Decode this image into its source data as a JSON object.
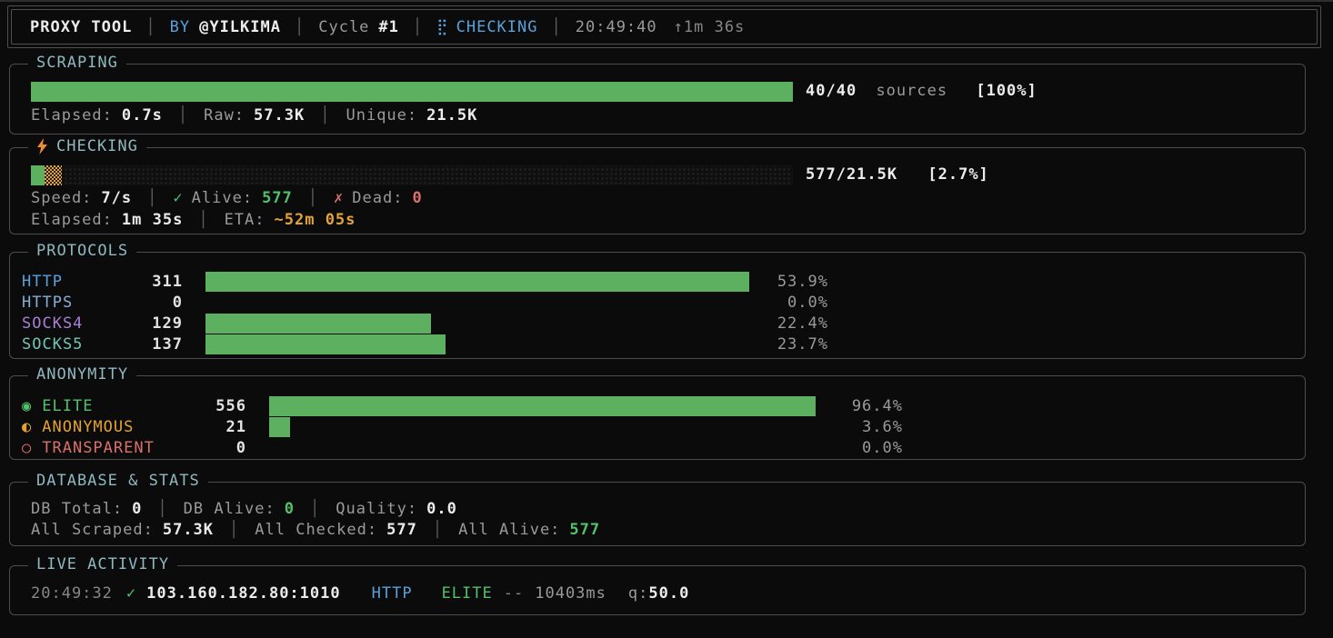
{
  "sep": "│",
  "colors": {
    "background": "#0b0b0c",
    "border": "#4d4d4d",
    "title_cyan": "#8fb8bf",
    "bar_green": "#5db05f",
    "text_green": "#53c06c",
    "blue": "#58a1dc",
    "light_blue": "#84aed4",
    "purple": "#a97fd6",
    "teal": "#72c4b4",
    "orange": "#e3a338",
    "red": "#d9706a",
    "gray": "#9a9a9a",
    "white": "#ececec"
  },
  "header": {
    "title": "PROXY TOOL",
    "by_label": "BY",
    "author": "@YILKIMA",
    "cycle_label": "Cycle",
    "cycle_value": "#1",
    "spinner": "⣟",
    "status": "CHECKING",
    "clock": "20:49:40",
    "uptime": "↑1m 36s"
  },
  "panels": {
    "scraping": {
      "title": "SCRAPING",
      "bar": {
        "fill_pct": 100
      },
      "right": {
        "count": "40/40",
        "unit": "sources",
        "pct": "[100%]"
      },
      "stats": [
        {
          "label": "Elapsed:",
          "value": "0.7s"
        },
        {
          "label": "Raw:",
          "value": "57.3K"
        },
        {
          "label": "Unique:",
          "value": "21.5K"
        }
      ]
    },
    "checking": {
      "title": "CHECKING",
      "bar": {
        "green_pct": 1.8,
        "orange_pct": 2.3
      },
      "right": {
        "count": "577/21.5K",
        "pct": "[2.7%]"
      },
      "speed_label": "Speed:",
      "speed": "7/s",
      "alive_icon": "✓",
      "alive_label": "Alive:",
      "alive": "577",
      "dead_icon": "✗",
      "dead_label": "Dead:",
      "dead": "0",
      "elapsed_label": "Elapsed:",
      "elapsed": "1m 35s",
      "eta_label": "ETA:",
      "eta": "~52m 05s"
    },
    "protocols": {
      "title": "PROTOCOLS",
      "rows": [
        {
          "label": "HTTP",
          "count": "311",
          "fill_pct": 100,
          "pct": "53.9%"
        },
        {
          "label": "HTTPS",
          "count": "0",
          "fill_pct": 0,
          "pct": "0.0%"
        },
        {
          "label": "SOCKS4",
          "count": "129",
          "fill_pct": 41.5,
          "pct": "22.4%"
        },
        {
          "label": "SOCKS5",
          "count": "137",
          "fill_pct": 44.1,
          "pct": "23.7%"
        }
      ]
    },
    "anonymity": {
      "title": "ANONYMITY",
      "rows": [
        {
          "icon": "◉",
          "label": "ELITE",
          "count": "556",
          "fill_pct": 100,
          "pct": "96.4%"
        },
        {
          "icon": "◐",
          "label": "ANONYMOUS",
          "count": "21",
          "fill_pct": 3.8,
          "pct": "3.6%"
        },
        {
          "icon": "○",
          "label": "TRANSPARENT",
          "count": "0",
          "fill_pct": 0,
          "pct": "0.0%"
        }
      ]
    },
    "database": {
      "title": "DATABASE & STATS",
      "line1": [
        {
          "label": "DB Total:",
          "value": "0"
        },
        {
          "label": "DB Alive:",
          "value": "0"
        },
        {
          "label": "Quality:",
          "value": "0.0"
        }
      ],
      "line2": [
        {
          "label": "All Scraped:",
          "value": "57.3K"
        },
        {
          "label": "All Checked:",
          "value": "577"
        },
        {
          "label": "All Alive:",
          "value": "577"
        }
      ]
    },
    "live": {
      "title": "LIVE ACTIVITY",
      "entry": {
        "time": "20:49:32",
        "check_icon": "✓",
        "address": "103.160.182.80:1010",
        "protocol": "HTTP",
        "anonymity": "ELITE",
        "dash": "--",
        "latency": "10403ms",
        "quality_label": "q:",
        "quality": "50.0"
      }
    }
  }
}
